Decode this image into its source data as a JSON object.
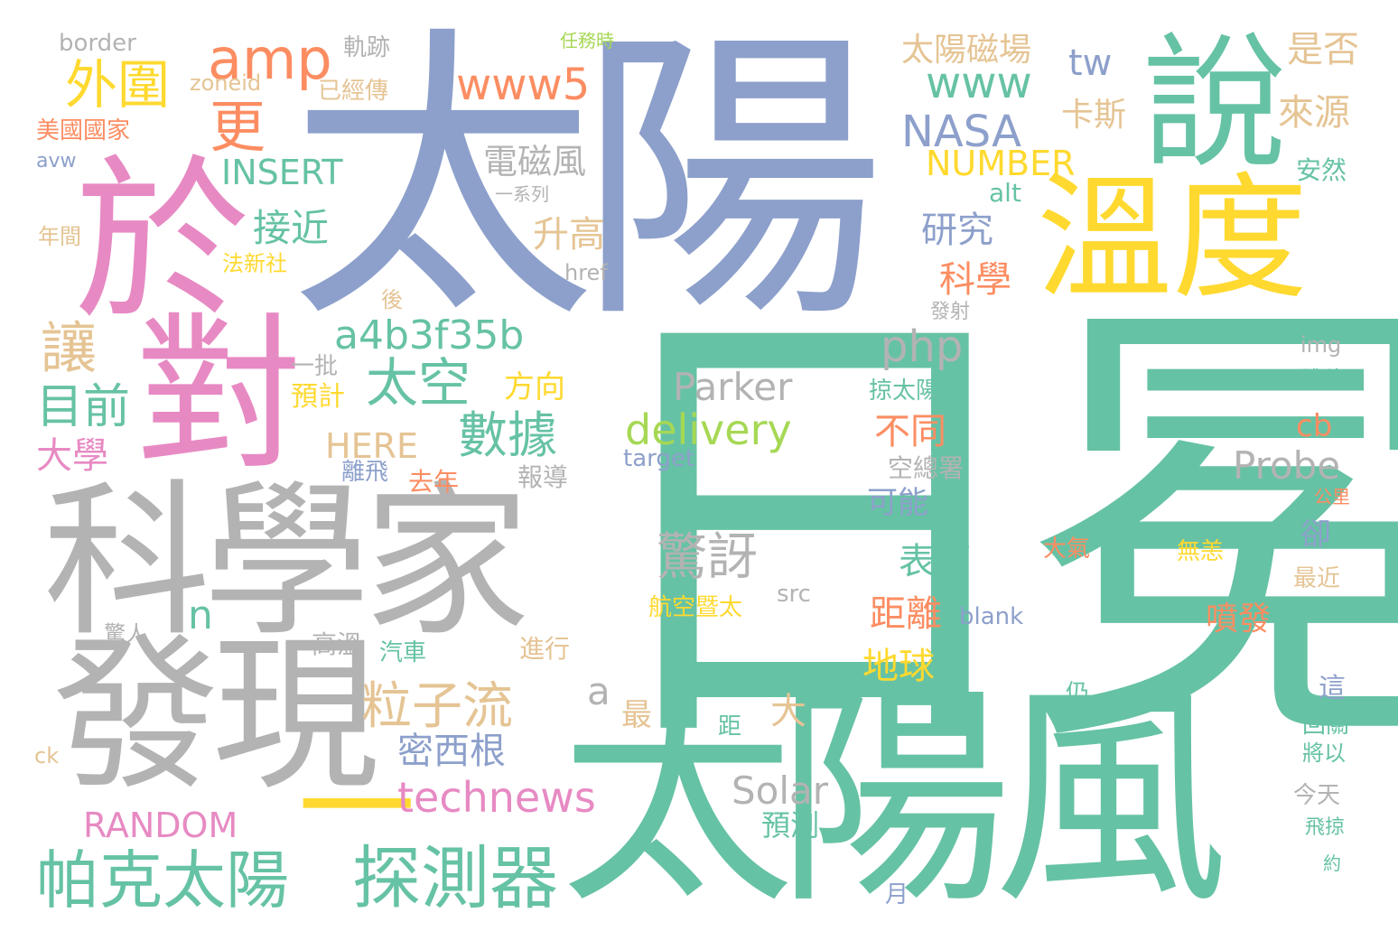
{
  "palette": {
    "teal": "#66c2a5",
    "orange": "#fc8d62",
    "blue": "#8da0cb",
    "pink": "#e78ac3",
    "green": "#a6d854",
    "yellow": "#ffd92f",
    "tan": "#e5c494",
    "gray": "#b3b3b3"
  },
  "words": [
    "日冕",
    "太陽",
    "太陽風",
    "科學家",
    "發現",
    "於",
    "對",
    "說",
    "溫度",
    "一",
    "帕克太陽",
    "探測器",
    "粒子流",
    "technews",
    "delivery",
    "驚訝",
    "數據",
    "密西根",
    "amp",
    "外圍",
    "更",
    "讓",
    "目前",
    "大學",
    "a4b3f35b",
    "太空",
    "接近",
    "INSERT",
    "RANDOM",
    "www5",
    "NASA",
    "www",
    "php",
    "Parker",
    "Probe",
    "Solar",
    "HERE",
    "NUMBER",
    "tw",
    "太陽磁場",
    "卡斯",
    "是否",
    "來源",
    "電磁風",
    "升高",
    "研究",
    "科學",
    "不同",
    "距離",
    "表面",
    "地球",
    "噴發",
    "a",
    "n",
    "大",
    "最",
    "方向",
    "預計",
    "cb",
    "blank",
    "alt",
    "安然",
    "空總署",
    "可能",
    "航空暨太",
    "無恙",
    "大氣",
    "src",
    "target",
    "後",
    "一批",
    "高溫",
    "汽車",
    "進行",
    "報導",
    "去年",
    "離飛",
    "法新社",
    "年間",
    "美國國家",
    "border",
    "軌跡",
    "已經傳",
    "zoneid",
    "avw",
    "href",
    "img",
    "掠太陽",
    "體積",
    "最近",
    "卻",
    "這",
    "回關",
    "將以",
    "今天",
    "飛掠",
    "預測",
    "月",
    "ck",
    "驚人",
    "發射",
    "公里",
    "約",
    "仍",
    "距",
    "任務時",
    "一系列"
  ]
}
